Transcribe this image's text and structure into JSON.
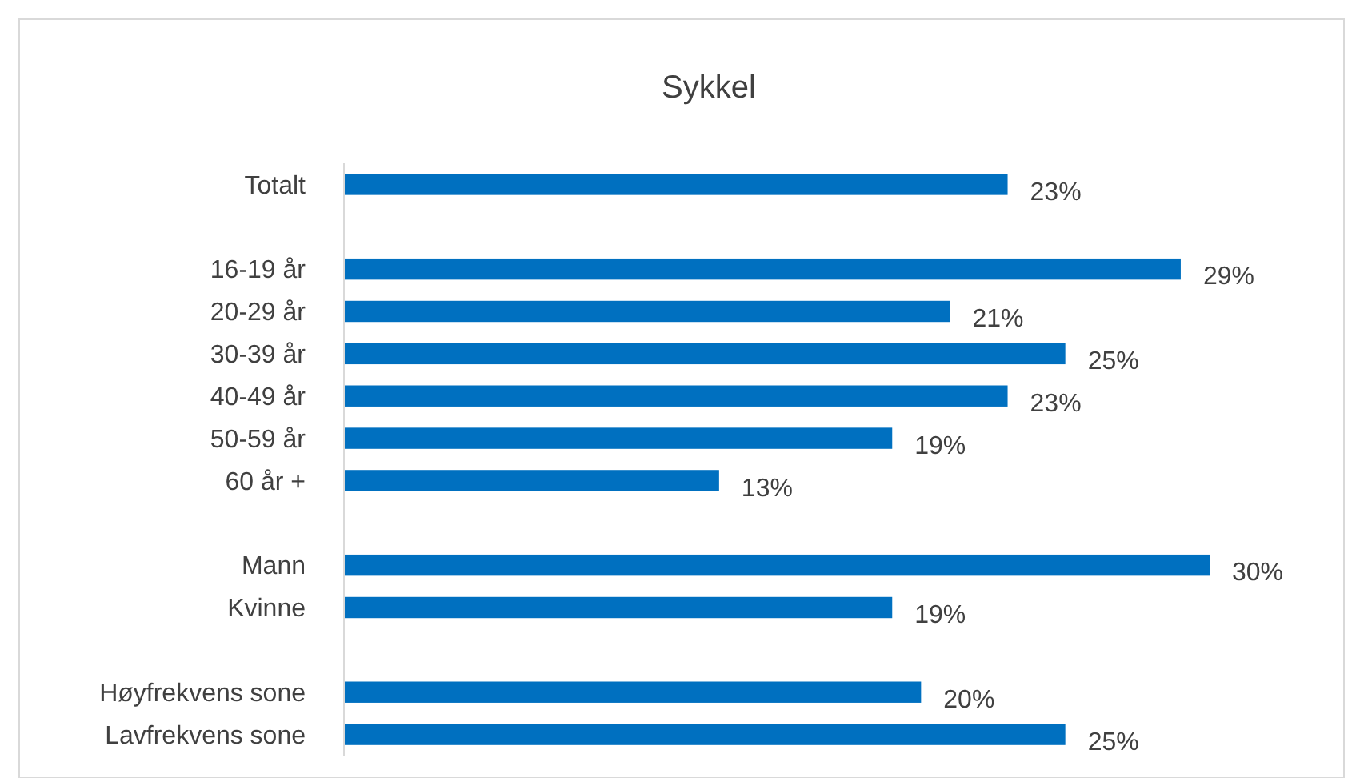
{
  "chart_data": {
    "type": "bar",
    "orientation": "horizontal",
    "title": "Sykkel",
    "categories": [
      "Totalt",
      null,
      "16-19 år",
      "20-29 år",
      "30-39 år",
      "40-49 år",
      "50-59 år",
      "60 år +",
      null,
      "Mann",
      "Kvinne",
      null,
      "Høyfrekvens sone",
      "Lavfrekvens sone"
    ],
    "values": [
      23,
      null,
      29,
      21,
      25,
      23,
      19,
      13,
      null,
      30,
      19,
      null,
      20,
      25
    ],
    "value_labels": [
      "23%",
      null,
      "29%",
      "21%",
      "25%",
      "23%",
      "19%",
      "13%",
      null,
      "30%",
      "19%",
      null,
      "20%",
      "25%"
    ],
    "color": "#0070c0"
  }
}
